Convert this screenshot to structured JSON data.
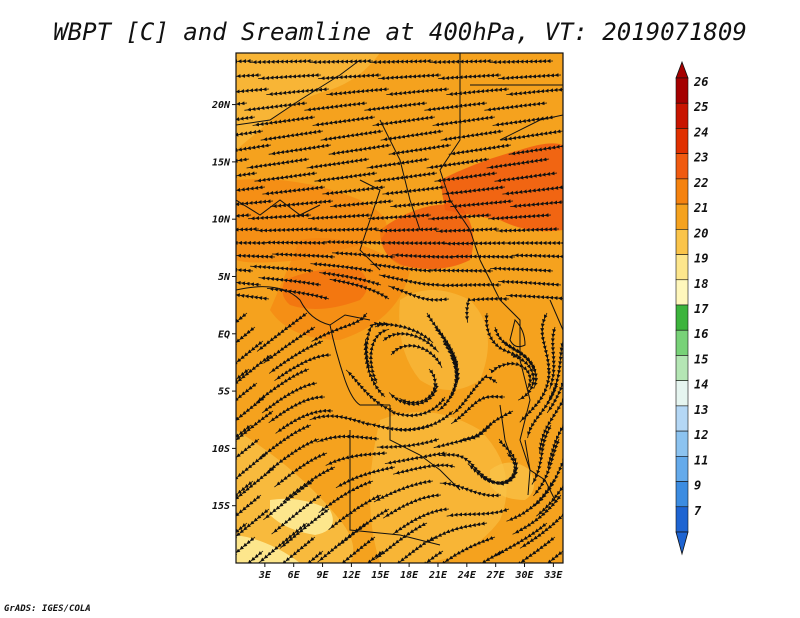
{
  "title": "WBPT [C] and Sreamline at 400hPa, VT: 2019071809",
  "footer": "GrADS: IGES/COLA",
  "map": {
    "lon_labels": [
      "3E",
      "6E",
      "9E",
      "12E",
      "15E",
      "18E",
      "21E",
      "24E",
      "27E",
      "30E",
      "33E"
    ],
    "lat_labels": [
      "20N",
      "15N",
      "10N",
      "5N",
      "EQ",
      "5S",
      "10S",
      "15S"
    ],
    "lon_range": [
      0,
      34
    ],
    "lat_range": [
      -20,
      24.5
    ]
  },
  "colorbar": {
    "labels": [
      "26",
      "25",
      "24",
      "23",
      "22",
      "21",
      "20",
      "19",
      "18",
      "17",
      "16",
      "15",
      "14",
      "13",
      "12",
      "11",
      "9",
      "7"
    ],
    "colors": [
      "#a50000",
      "#c81400",
      "#e03000",
      "#f05a10",
      "#f5820f",
      "#f5a21e",
      "#fac44a",
      "#fde68c",
      "#fff7bc",
      "#3cb43c",
      "#78d278",
      "#b4e6b4",
      "#e6f5f0",
      "#b4d7f5",
      "#8cc3f0",
      "#64aaeb",
      "#3c8ce1",
      "#1e64d2"
    ],
    "top_arrow_color": "#a50000",
    "bottom_arrow_color": "#1e64d2"
  }
}
